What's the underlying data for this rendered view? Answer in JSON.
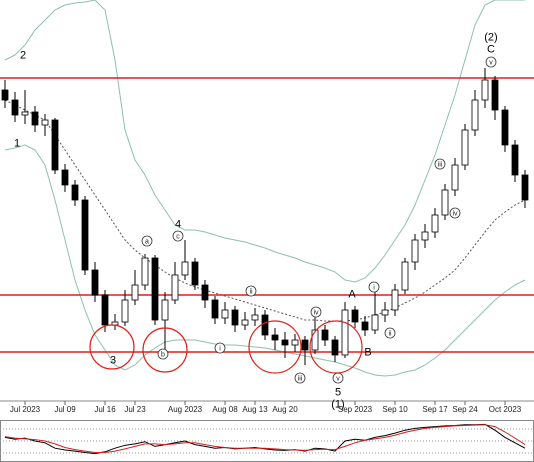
{
  "chart_data": {
    "type": "candlestick",
    "categories": [
      null,
      null,
      "Jul 2023",
      null,
      null,
      null,
      "Jul 09",
      null,
      null,
      null,
      "Jul 16",
      null,
      null,
      "Jul 23",
      null,
      null,
      null,
      null,
      "Aug 2023",
      null,
      null,
      null,
      "Aug 08",
      null,
      null,
      "Aug 13",
      null,
      null,
      "Aug 20",
      null,
      null,
      null,
      null,
      null,
      null,
      "Sep 2023",
      null,
      null,
      null,
      "Sep 10",
      null,
      null,
      null,
      "Sep 17",
      null,
      null,
      "Sep 24",
      null,
      null,
      null,
      "Oct 2023",
      null,
      null
    ],
    "open": [
      330,
      320,
      305,
      308,
      295,
      300,
      250,
      235,
      220,
      150,
      125,
      95,
      98,
      120,
      135,
      162,
      100,
      120,
      145,
      158,
      135,
      120,
      102,
      110,
      95,
      100,
      105,
      85,
      80,
      75,
      80,
      70,
      90,
      80,
      65,
      110,
      98,
      90,
      105,
      110,
      130,
      158,
      180,
      188,
      205,
      230,
      255,
      290,
      320,
      340,
      310,
      275,
      245
    ],
    "high": [
      340,
      328,
      330,
      314,
      306,
      302,
      256,
      240,
      224,
      158,
      130,
      106,
      130,
      150,
      166,
      165,
      128,
      158,
      180,
      162,
      140,
      124,
      118,
      114,
      108,
      112,
      110,
      92,
      88,
      86,
      84,
      105,
      95,
      84,
      118,
      114,
      104,
      130,
      118,
      136,
      162,
      186,
      196,
      212,
      236,
      262,
      296,
      330,
      352,
      344,
      314,
      280,
      250
    ],
    "low": [
      312,
      298,
      296,
      288,
      284,
      246,
      228,
      214,
      145,
      118,
      88,
      90,
      94,
      115,
      130,
      95,
      70,
      116,
      140,
      130,
      112,
      96,
      96,
      88,
      90,
      94,
      80,
      70,
      62,
      68,
      55,
      66,
      74,
      58,
      62,
      92,
      84,
      86,
      98,
      104,
      126,
      150,
      172,
      182,
      200,
      224,
      250,
      284,
      312,
      300,
      268,
      238,
      212
    ],
    "close": [
      320,
      305,
      308,
      295,
      300,
      250,
      235,
      220,
      150,
      125,
      95,
      98,
      120,
      135,
      162,
      100,
      120,
      145,
      158,
      135,
      120,
      102,
      110,
      95,
      100,
      105,
      85,
      80,
      75,
      80,
      70,
      90,
      80,
      65,
      110,
      98,
      90,
      105,
      110,
      130,
      158,
      180,
      188,
      205,
      230,
      255,
      290,
      320,
      340,
      310,
      275,
      245,
      220
    ],
    "up_color": "#ffffff",
    "down_color": "#000000",
    "ylim": [
      20,
      420
    ],
    "levels": {
      "values": [
        342,
        125,
        68
      ],
      "color": "#e0201a"
    },
    "bands": {
      "color": "#8fbfb0",
      "middle_color": "#555555",
      "upper": [
        360,
        365,
        375,
        390,
        400,
        410,
        415,
        417,
        418,
        420,
        410,
        360,
        290,
        260,
        245,
        225,
        210,
        195,
        190,
        190,
        188,
        185,
        182,
        180,
        178,
        175,
        172,
        168,
        165,
        162,
        158,
        155,
        152,
        148,
        140,
        138,
        142,
        152,
        165,
        180,
        195,
        215,
        240,
        265,
        295,
        325,
        360,
        395,
        415,
        420,
        420,
        420,
        420
      ],
      "middle": [
        320,
        315,
        310,
        305,
        300,
        285,
        270,
        255,
        240,
        225,
        210,
        195,
        180,
        170,
        162,
        155,
        148,
        142,
        137,
        133,
        130,
        127,
        124,
        121,
        118,
        115,
        112,
        109,
        106,
        103,
        100,
        100,
        99,
        99,
        99,
        100,
        102,
        105,
        108,
        112,
        117,
        122,
        128,
        135,
        142,
        150,
        162,
        175,
        188,
        200,
        208,
        215,
        220
      ],
      "lower": [
        270,
        272,
        275,
        270,
        255,
        220,
        180,
        140,
        110,
        85,
        70,
        55,
        50,
        55,
        65,
        72,
        78,
        80,
        80,
        80,
        78,
        76,
        75,
        75,
        74,
        73,
        72,
        70,
        68,
        66,
        64,
        62,
        60,
        58,
        55,
        52,
        48,
        45,
        44,
        45,
        48,
        50,
        55,
        62,
        70,
        80,
        90,
        100,
        110,
        120,
        128,
        135,
        140
      ]
    },
    "annotations": [
      {
        "text": "2",
        "circled": false
      },
      {
        "text": "1",
        "circled": false
      },
      {
        "text": "3",
        "circled": false
      },
      {
        "text": "b",
        "circled": true
      },
      {
        "text": "a",
        "circled": true
      },
      {
        "text": "4",
        "circled": false
      },
      {
        "text": "c",
        "circled": true
      },
      {
        "text": "i",
        "circled": true
      },
      {
        "text": "ii",
        "circled": true
      },
      {
        "text": "iii",
        "circled": true
      },
      {
        "text": "iv",
        "circled": true
      },
      {
        "text": "v",
        "circled": true
      },
      {
        "text": "5",
        "circled": false
      },
      {
        "text": "(1)",
        "circled": false
      },
      {
        "text": "A",
        "circled": false
      },
      {
        "text": "B",
        "circled": false
      },
      {
        "text": "i",
        "circled": true
      },
      {
        "text": "ii",
        "circled": true
      },
      {
        "text": "iii",
        "circled": true
      },
      {
        "text": "iv",
        "circled": true
      },
      {
        "text": "v",
        "circled": true
      },
      {
        "text": "C",
        "circled": false
      },
      {
        "text": "(2)",
        "circled": false
      }
    ],
    "oscillator": {
      "ylim": [
        0,
        100
      ],
      "series": [
        {
          "color": "#000000",
          "values": [
            60,
            55,
            58,
            50,
            45,
            30,
            25,
            22,
            18,
            15,
            20,
            30,
            38,
            42,
            48,
            35,
            40,
            45,
            50,
            40,
            35,
            30,
            32,
            28,
            30,
            32,
            28,
            25,
            24,
            26,
            22,
            30,
            28,
            22,
            50,
            55,
            52,
            60,
            65,
            72,
            80,
            85,
            88,
            90,
            92,
            93,
            95,
            95,
            96,
            80,
            60,
            45,
            30
          ]
        },
        {
          "color": "#d62020",
          "values": [
            62,
            58,
            56,
            54,
            50,
            42,
            32,
            26,
            22,
            18,
            18,
            22,
            28,
            35,
            42,
            42,
            40,
            42,
            45,
            45,
            40,
            35,
            32,
            30,
            30,
            30,
            30,
            28,
            26,
            25,
            24,
            26,
            27,
            26,
            35,
            45,
            52,
            56,
            60,
            66,
            74,
            80,
            85,
            88,
            90,
            92,
            93,
            94,
            95,
            90,
            75,
            58,
            40
          ]
        }
      ]
    }
  }
}
